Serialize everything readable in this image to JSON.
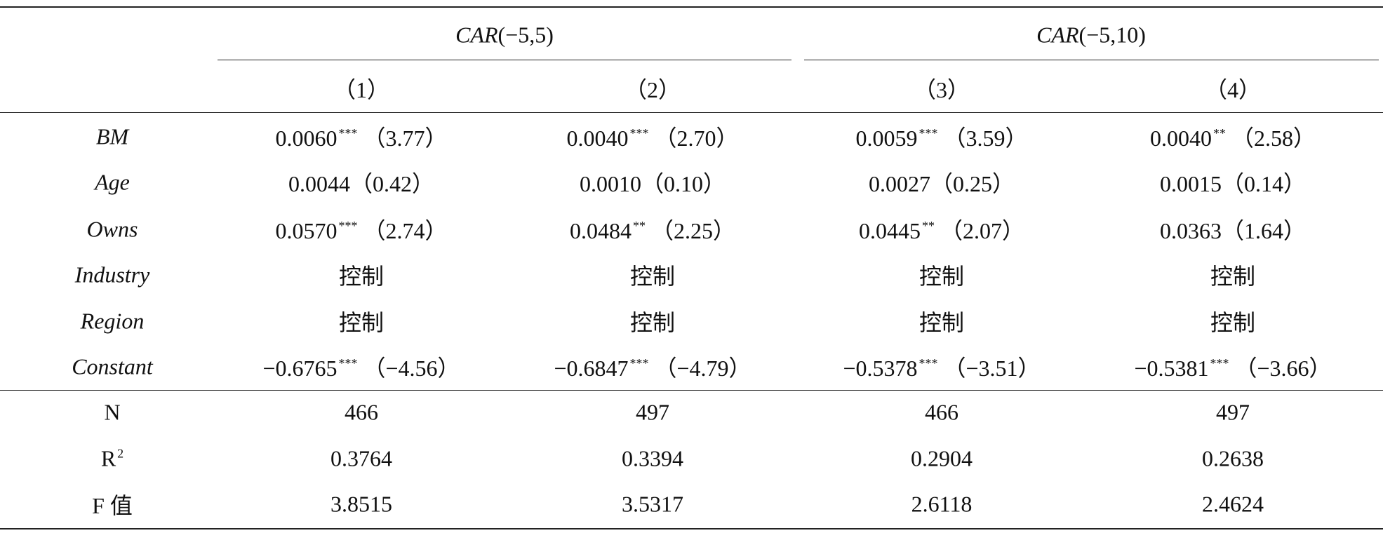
{
  "table": {
    "groups": [
      {
        "italic": "CAR",
        "text": "(−5,5)"
      },
      {
        "italic": "CAR",
        "text": "(−5,10)"
      }
    ],
    "columns": [
      "（1）",
      "（2）",
      "（3）",
      "（4）"
    ],
    "rows": [
      {
        "label": "BM",
        "cells": [
          {
            "coef": "0.0060",
            "stars": "***",
            "t": "（3.77）"
          },
          {
            "coef": "0.0040",
            "stars": "***",
            "t": "（2.70）"
          },
          {
            "coef": "0.0059",
            "stars": "***",
            "t": "（3.59）"
          },
          {
            "coef": "0.0040",
            "stars": "**",
            "t": "（2.58）"
          }
        ]
      },
      {
        "label": "Age",
        "cells": [
          {
            "coef": "0.0044",
            "t": "（0.42）"
          },
          {
            "coef": "0.0010",
            "t": "（0.10）"
          },
          {
            "coef": "0.0027",
            "t": "（0.25）"
          },
          {
            "coef": "0.0015",
            "t": "（0.14）"
          }
        ]
      },
      {
        "label": "Owns",
        "cells": [
          {
            "coef": "0.0570",
            "stars": "***",
            "t": "（2.74）"
          },
          {
            "coef": "0.0484",
            "stars": "**",
            "t": "（2.25）"
          },
          {
            "coef": "0.0445",
            "stars": "**",
            "t": "（2.07）"
          },
          {
            "coef": "0.0363",
            "t": "（1.64）"
          }
        ]
      },
      {
        "label": "Industry",
        "cells": [
          {
            "coef": "控制"
          },
          {
            "coef": "控制"
          },
          {
            "coef": "控制"
          },
          {
            "coef": "控制"
          }
        ]
      },
      {
        "label": "Region",
        "cells": [
          {
            "coef": "控制"
          },
          {
            "coef": "控制"
          },
          {
            "coef": "控制"
          },
          {
            "coef": "控制"
          }
        ]
      },
      {
        "label": "Constant",
        "cells": [
          {
            "coef": "−0.6765",
            "stars": "***",
            "t": "（−4.56）"
          },
          {
            "coef": "−0.6847",
            "stars": "***",
            "t": "（−4.79）"
          },
          {
            "coef": "−0.5378",
            "stars": "***",
            "t": "（−3.51）"
          },
          {
            "coef": "−0.5381",
            "stars": "***",
            "t": "（−3.66）"
          }
        ]
      }
    ],
    "stats": [
      {
        "label": "N",
        "values": [
          "466",
          "497",
          "466",
          "497"
        ]
      },
      {
        "label": "R",
        "sup": "2",
        "values": [
          "0.3764",
          "0.3394",
          "0.2904",
          "0.2638"
        ]
      },
      {
        "label": "F 值",
        "values": [
          "3.8515",
          "3.5317",
          "2.6118",
          "2.4624"
        ]
      }
    ]
  }
}
